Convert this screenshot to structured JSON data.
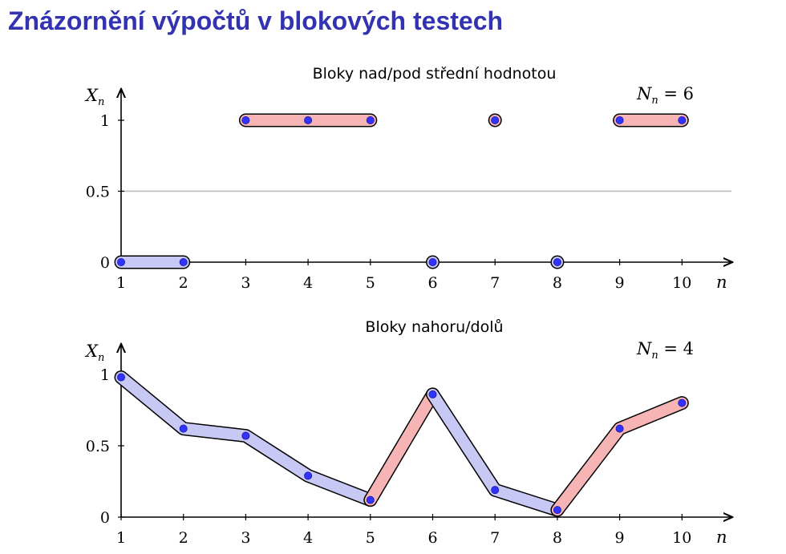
{
  "page": {
    "title": "Znázornění výpočtů v blokových testech"
  },
  "colors": {
    "title": "#3333b2",
    "block_low": "#c8c8f5",
    "block_high": "#f7b4b4",
    "point": "#3333ff",
    "gridline": "#bbbbbb"
  },
  "chart_data": [
    {
      "type": "scatter",
      "title": "Bloky nad/pod střední hodnotou",
      "xlabel": "n",
      "ylabel": "X_n",
      "ylabel_base": "X",
      "ylabel_sub": "n",
      "x": [
        1,
        2,
        3,
        4,
        5,
        6,
        7,
        8,
        9,
        10
      ],
      "y": [
        0,
        0,
        1,
        1,
        1,
        0,
        1,
        0,
        1,
        1
      ],
      "xticks": [
        "1",
        "2",
        "3",
        "4",
        "5",
        "6",
        "7",
        "8",
        "9",
        "10"
      ],
      "yticks": [
        "0",
        "0.5",
        "1"
      ],
      "ylim": [
        0,
        1
      ],
      "xlim": [
        1,
        10
      ],
      "reference_line": 0.5,
      "count_label": {
        "base": "N",
        "sub": "n",
        "rest": " = 6"
      },
      "blocks": [
        {
          "from": 1,
          "to": 2,
          "kind": "below"
        },
        {
          "from": 3,
          "to": 5,
          "kind": "above"
        },
        {
          "from": 6,
          "to": 6,
          "kind": "below"
        },
        {
          "from": 7,
          "to": 7,
          "kind": "above"
        },
        {
          "from": 8,
          "to": 8,
          "kind": "below"
        },
        {
          "from": 9,
          "to": 10,
          "kind": "above"
        }
      ]
    },
    {
      "type": "line",
      "title": "Bloky nahoru/dolů",
      "xlabel": "n",
      "ylabel": "X_n",
      "ylabel_base": "X",
      "ylabel_sub": "n",
      "x": [
        1,
        2,
        3,
        4,
        5,
        6,
        7,
        8,
        9,
        10
      ],
      "y": [
        0.98,
        0.62,
        0.57,
        0.29,
        0.12,
        0.86,
        0.19,
        0.05,
        0.62,
        0.8
      ],
      "xticks": [
        "1",
        "2",
        "3",
        "4",
        "5",
        "6",
        "7",
        "8",
        "9",
        "10"
      ],
      "yticks": [
        "0",
        "0.5",
        "1"
      ],
      "ylim": [
        0,
        1
      ],
      "xlim": [
        1,
        10
      ],
      "count_label": {
        "base": "N",
        "sub": "n",
        "rest": " = 4"
      },
      "blocks": [
        {
          "from": 1,
          "to": 5,
          "kind": "down"
        },
        {
          "from": 5,
          "to": 6,
          "kind": "up"
        },
        {
          "from": 6,
          "to": 8,
          "kind": "down"
        },
        {
          "from": 8,
          "to": 10,
          "kind": "up"
        }
      ]
    }
  ]
}
